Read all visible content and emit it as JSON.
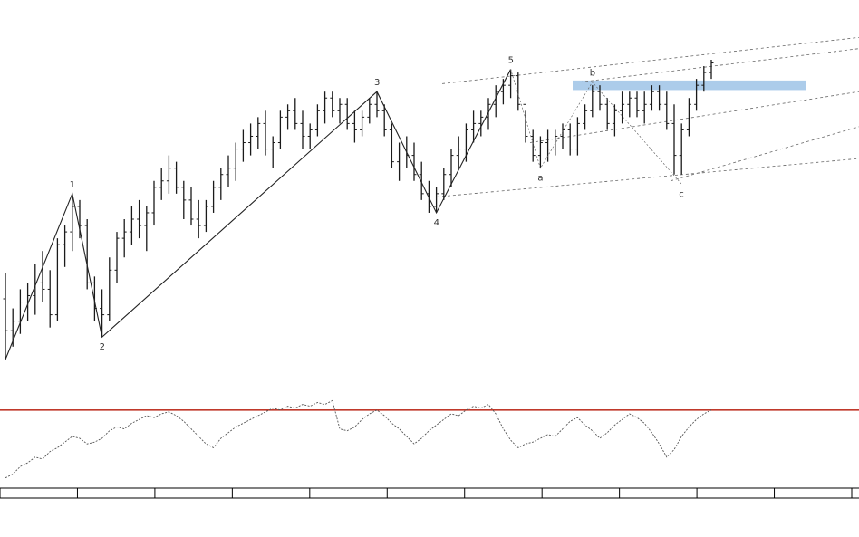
{
  "chart_data": {
    "type": "ohlc",
    "title": "",
    "legend": [
      "",
      ""
    ],
    "corner_label": "",
    "price_scale": {
      "min": 0,
      "max": 100
    },
    "osc_scale": {
      "min": 0,
      "max": 100,
      "level": 80
    },
    "wave_labels": [
      {
        "label": "1",
        "i": 9,
        "y": 58
      },
      {
        "label": "2",
        "i": 13,
        "y": 13
      },
      {
        "label": "3",
        "i": 50,
        "y": 90
      },
      {
        "label": "4",
        "i": 58,
        "y": 52
      },
      {
        "label": "5",
        "i": 68,
        "y": 97
      },
      {
        "label": "a",
        "i": 72,
        "y": 66
      },
      {
        "label": "b",
        "i": 79,
        "y": 93
      },
      {
        "label": "c",
        "i": 91,
        "y": 61
      }
    ],
    "bars": [
      {
        "o": 25,
        "h": 33,
        "l": 6,
        "c": 15
      },
      {
        "o": 15,
        "h": 22,
        "l": 10,
        "c": 18
      },
      {
        "o": 18,
        "h": 28,
        "l": 14,
        "c": 24
      },
      {
        "o": 24,
        "h": 30,
        "l": 18,
        "c": 26
      },
      {
        "o": 26,
        "h": 36,
        "l": 20,
        "c": 30
      },
      {
        "o": 30,
        "h": 40,
        "l": 24,
        "c": 28
      },
      {
        "o": 28,
        "h": 34,
        "l": 16,
        "c": 20
      },
      {
        "o": 20,
        "h": 44,
        "l": 18,
        "c": 42
      },
      {
        "o": 42,
        "h": 48,
        "l": 35,
        "c": 46
      },
      {
        "o": 46,
        "h": 58,
        "l": 40,
        "c": 54
      },
      {
        "o": 54,
        "h": 56,
        "l": 44,
        "c": 48
      },
      {
        "o": 48,
        "h": 50,
        "l": 28,
        "c": 30
      },
      {
        "o": 30,
        "h": 32,
        "l": 18,
        "c": 22
      },
      {
        "o": 22,
        "h": 28,
        "l": 13,
        "c": 20
      },
      {
        "o": 20,
        "h": 38,
        "l": 18,
        "c": 34
      },
      {
        "o": 34,
        "h": 46,
        "l": 30,
        "c": 44
      },
      {
        "o": 44,
        "h": 50,
        "l": 38,
        "c": 46
      },
      {
        "o": 46,
        "h": 54,
        "l": 42,
        "c": 50
      },
      {
        "o": 50,
        "h": 56,
        "l": 44,
        "c": 48
      },
      {
        "o": 48,
        "h": 54,
        "l": 40,
        "c": 52
      },
      {
        "o": 52,
        "h": 62,
        "l": 48,
        "c": 60
      },
      {
        "o": 60,
        "h": 66,
        "l": 56,
        "c": 62
      },
      {
        "o": 62,
        "h": 70,
        "l": 58,
        "c": 66
      },
      {
        "o": 66,
        "h": 68,
        "l": 58,
        "c": 60
      },
      {
        "o": 60,
        "h": 62,
        "l": 50,
        "c": 56
      },
      {
        "o": 56,
        "h": 60,
        "l": 48,
        "c": 50
      },
      {
        "o": 50,
        "h": 56,
        "l": 44,
        "c": 48
      },
      {
        "o": 48,
        "h": 56,
        "l": 46,
        "c": 54
      },
      {
        "o": 54,
        "h": 62,
        "l": 52,
        "c": 60
      },
      {
        "o": 60,
        "h": 66,
        "l": 56,
        "c": 64
      },
      {
        "o": 64,
        "h": 70,
        "l": 60,
        "c": 66
      },
      {
        "o": 66,
        "h": 74,
        "l": 62,
        "c": 72
      },
      {
        "o": 72,
        "h": 78,
        "l": 68,
        "c": 74
      },
      {
        "o": 74,
        "h": 80,
        "l": 70,
        "c": 76
      },
      {
        "o": 76,
        "h": 82,
        "l": 72,
        "c": 80
      },
      {
        "o": 80,
        "h": 84,
        "l": 70,
        "c": 72
      },
      {
        "o": 72,
        "h": 76,
        "l": 66,
        "c": 74
      },
      {
        "o": 74,
        "h": 84,
        "l": 72,
        "c": 82
      },
      {
        "o": 82,
        "h": 86,
        "l": 78,
        "c": 84
      },
      {
        "o": 84,
        "h": 88,
        "l": 78,
        "c": 80
      },
      {
        "o": 80,
        "h": 84,
        "l": 72,
        "c": 76
      },
      {
        "o": 76,
        "h": 80,
        "l": 72,
        "c": 78
      },
      {
        "o": 78,
        "h": 86,
        "l": 76,
        "c": 84
      },
      {
        "o": 84,
        "h": 90,
        "l": 80,
        "c": 88
      },
      {
        "o": 88,
        "h": 90,
        "l": 82,
        "c": 84
      },
      {
        "o": 84,
        "h": 88,
        "l": 80,
        "c": 86
      },
      {
        "o": 86,
        "h": 88,
        "l": 78,
        "c": 80
      },
      {
        "o": 80,
        "h": 84,
        "l": 74,
        "c": 78
      },
      {
        "o": 78,
        "h": 84,
        "l": 76,
        "c": 82
      },
      {
        "o": 82,
        "h": 88,
        "l": 80,
        "c": 86
      },
      {
        "o": 86,
        "h": 90,
        "l": 82,
        "c": 84
      },
      {
        "o": 84,
        "h": 86,
        "l": 76,
        "c": 78
      },
      {
        "o": 78,
        "h": 80,
        "l": 66,
        "c": 68
      },
      {
        "o": 68,
        "h": 74,
        "l": 62,
        "c": 72
      },
      {
        "o": 72,
        "h": 76,
        "l": 66,
        "c": 70
      },
      {
        "o": 70,
        "h": 74,
        "l": 62,
        "c": 64
      },
      {
        "o": 64,
        "h": 68,
        "l": 56,
        "c": 58
      },
      {
        "o": 58,
        "h": 62,
        "l": 52,
        "c": 54
      },
      {
        "o": 54,
        "h": 60,
        "l": 52,
        "c": 58
      },
      {
        "o": 58,
        "h": 66,
        "l": 56,
        "c": 64
      },
      {
        "o": 64,
        "h": 72,
        "l": 60,
        "c": 70
      },
      {
        "o": 70,
        "h": 76,
        "l": 66,
        "c": 72
      },
      {
        "o": 72,
        "h": 80,
        "l": 68,
        "c": 78
      },
      {
        "o": 78,
        "h": 84,
        "l": 74,
        "c": 80
      },
      {
        "o": 80,
        "h": 84,
        "l": 76,
        "c": 82
      },
      {
        "o": 82,
        "h": 88,
        "l": 78,
        "c": 86
      },
      {
        "o": 86,
        "h": 92,
        "l": 82,
        "c": 90
      },
      {
        "o": 90,
        "h": 94,
        "l": 86,
        "c": 92
      },
      {
        "o": 92,
        "h": 97,
        "l": 88,
        "c": 95
      },
      {
        "o": 95,
        "h": 96,
        "l": 84,
        "c": 86
      },
      {
        "o": 86,
        "h": 84,
        "l": 74,
        "c": 76
      },
      {
        "o": 76,
        "h": 78,
        "l": 68,
        "c": 70
      },
      {
        "o": 70,
        "h": 76,
        "l": 66,
        "c": 74
      },
      {
        "o": 74,
        "h": 78,
        "l": 68,
        "c": 72
      },
      {
        "o": 72,
        "h": 78,
        "l": 70,
        "c": 76
      },
      {
        "o": 76,
        "h": 80,
        "l": 72,
        "c": 78
      },
      {
        "o": 78,
        "h": 80,
        "l": 70,
        "c": 72
      },
      {
        "o": 72,
        "h": 82,
        "l": 70,
        "c": 80
      },
      {
        "o": 80,
        "h": 86,
        "l": 78,
        "c": 84
      },
      {
        "o": 84,
        "h": 92,
        "l": 82,
        "c": 90
      },
      {
        "o": 90,
        "h": 92,
        "l": 84,
        "c": 86
      },
      {
        "o": 86,
        "h": 88,
        "l": 78,
        "c": 80
      },
      {
        "o": 80,
        "h": 86,
        "l": 76,
        "c": 84
      },
      {
        "o": 84,
        "h": 90,
        "l": 80,
        "c": 86
      },
      {
        "o": 86,
        "h": 90,
        "l": 82,
        "c": 88
      },
      {
        "o": 88,
        "h": 90,
        "l": 82,
        "c": 84
      },
      {
        "o": 84,
        "h": 90,
        "l": 80,
        "c": 86
      },
      {
        "o": 86,
        "h": 92,
        "l": 84,
        "c": 90
      },
      {
        "o": 90,
        "h": 92,
        "l": 84,
        "c": 86
      },
      {
        "o": 86,
        "h": 90,
        "l": 78,
        "c": 80
      },
      {
        "o": 80,
        "h": 86,
        "l": 64,
        "c": 70
      },
      {
        "o": 70,
        "h": 80,
        "l": 64,
        "c": 78
      },
      {
        "o": 78,
        "h": 88,
        "l": 76,
        "c": 86
      },
      {
        "o": 86,
        "h": 94,
        "l": 84,
        "c": 92
      },
      {
        "o": 92,
        "h": 98,
        "l": 90,
        "c": 96
      },
      {
        "o": 96,
        "h": 100,
        "l": 94,
        "c": 99
      }
    ],
    "oscillator": [
      8,
      12,
      20,
      24,
      30,
      28,
      36,
      40,
      46,
      52,
      50,
      44,
      46,
      50,
      58,
      62,
      60,
      66,
      70,
      74,
      72,
      76,
      78,
      74,
      68,
      60,
      52,
      44,
      40,
      50,
      56,
      62,
      66,
      70,
      74,
      78,
      82,
      80,
      84,
      82,
      86,
      84,
      88,
      86,
      90,
      60,
      58,
      62,
      70,
      76,
      80,
      74,
      66,
      60,
      52,
      44,
      50,
      58,
      64,
      70,
      76,
      74,
      80,
      84,
      82,
      86,
      76,
      60,
      48,
      40,
      44,
      46,
      50,
      54,
      52,
      60,
      68,
      72,
      64,
      58,
      50,
      56,
      64,
      70,
      76,
      72,
      66,
      56,
      44,
      30,
      38,
      52,
      62,
      70,
      76,
      80
    ],
    "x_ticks": [
      "",
      "",
      "",
      "",
      "",
      "",
      "",
      "",
      "",
      "",
      "",
      ""
    ],
    "x_year_labels": [
      "",
      ""
    ]
  },
  "colors": {
    "bar": "#1a1a1a",
    "wave": "#222222",
    "channel": "#666666",
    "resistance_zone": "#9ec3e6",
    "osc_level": "#c0392b",
    "osc_line": "#555555",
    "axis": "#000000"
  }
}
